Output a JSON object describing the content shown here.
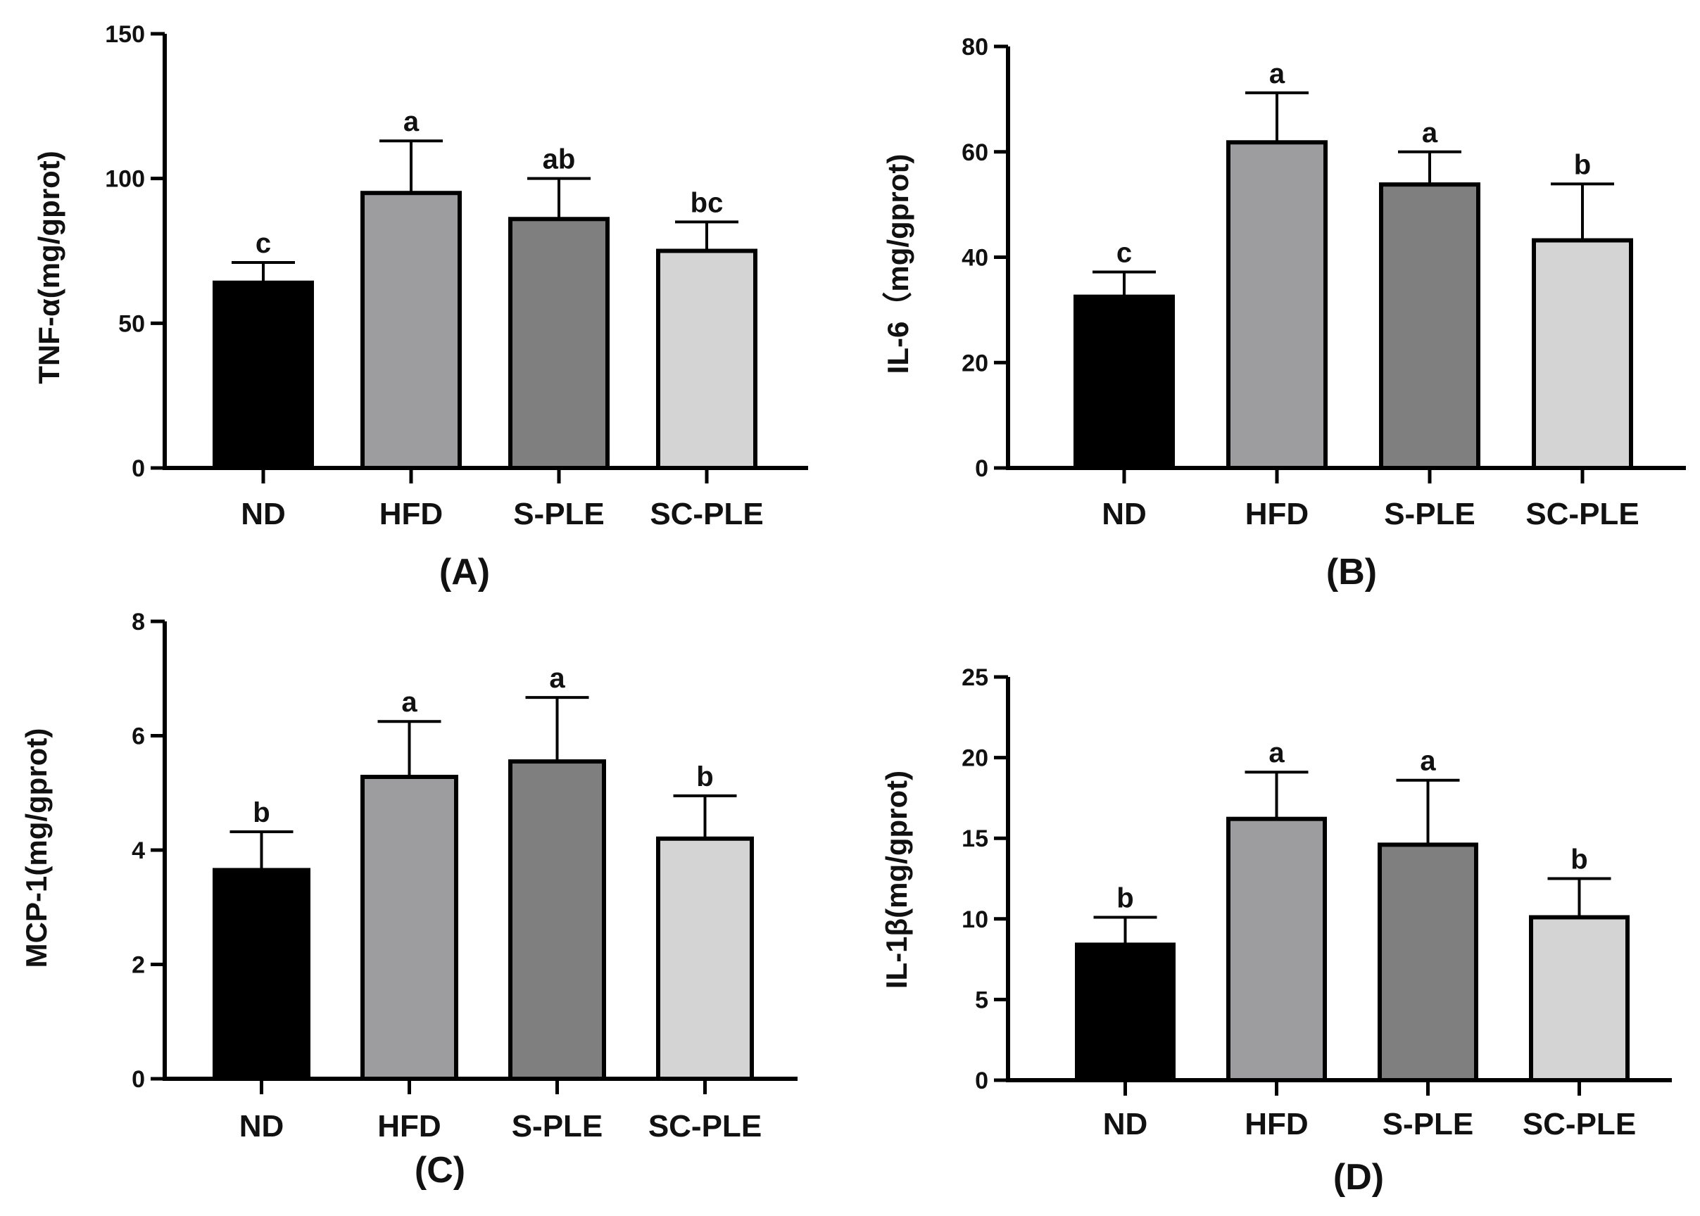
{
  "chart_data": [
    {
      "type": "bar",
      "panel": "(A)",
      "ylabel": "TNF-α(mg/gprot)",
      "ylim": [
        0,
        150
      ],
      "yticks": [
        0,
        50,
        100,
        150
      ],
      "categories": [
        "ND",
        "HFD",
        "S-PLE",
        "SC-PLE"
      ],
      "values": [
        64,
        95,
        86,
        75
      ],
      "errors": [
        7,
        18,
        14,
        10
      ],
      "significance": [
        "c",
        "a",
        "ab",
        "bc"
      ],
      "colors": [
        "#000000",
        "#9d9d9f",
        "#7f7f7f",
        "#d4d4d4"
      ]
    },
    {
      "type": "bar",
      "panel": "(B)",
      "ylabel": "IL-6（mg/gprot)",
      "ylim": [
        0,
        80
      ],
      "yticks": [
        0,
        20,
        40,
        60,
        80
      ],
      "categories": [
        "ND",
        "HFD",
        "S-PLE",
        "SC-PLE"
      ],
      "values": [
        32.5,
        61.8,
        53.8,
        43.2
      ],
      "errors": [
        4.7,
        9.4,
        6.2,
        10.7
      ],
      "significance": [
        "c",
        "a",
        "a",
        "b"
      ],
      "colors": [
        "#000000",
        "#9d9d9f",
        "#7f7f7f",
        "#d4d4d4"
      ]
    },
    {
      "type": "bar",
      "panel": "(C)",
      "ylabel": "MCP-1(mg/gprot)",
      "ylim": [
        0,
        8
      ],
      "yticks": [
        0,
        2,
        4,
        6,
        8
      ],
      "categories": [
        "ND",
        "HFD",
        "S-PLE",
        "SC-PLE"
      ],
      "values": [
        3.65,
        5.28,
        5.55,
        4.2
      ],
      "errors": [
        0.67,
        0.97,
        1.12,
        0.75
      ],
      "significance": [
        "b",
        "a",
        "a",
        "b"
      ],
      "colors": [
        "#000000",
        "#9d9d9f",
        "#7f7f7f",
        "#d4d4d4"
      ]
    },
    {
      "type": "bar",
      "panel": "(D)",
      "ylabel": "IL-1β(mg/gprot)",
      "ylim": [
        0,
        25
      ],
      "yticks": [
        0,
        5,
        10,
        15,
        20,
        25
      ],
      "categories": [
        "ND",
        "HFD",
        "S-PLE",
        "SC-PLE"
      ],
      "values": [
        8.4,
        16.2,
        14.6,
        10.1
      ],
      "errors": [
        1.7,
        2.9,
        4.0,
        2.4
      ],
      "significance": [
        "b",
        "a",
        "a",
        "b"
      ],
      "colors": [
        "#000000",
        "#9d9d9f",
        "#7f7f7f",
        "#d4d4d4"
      ]
    }
  ]
}
